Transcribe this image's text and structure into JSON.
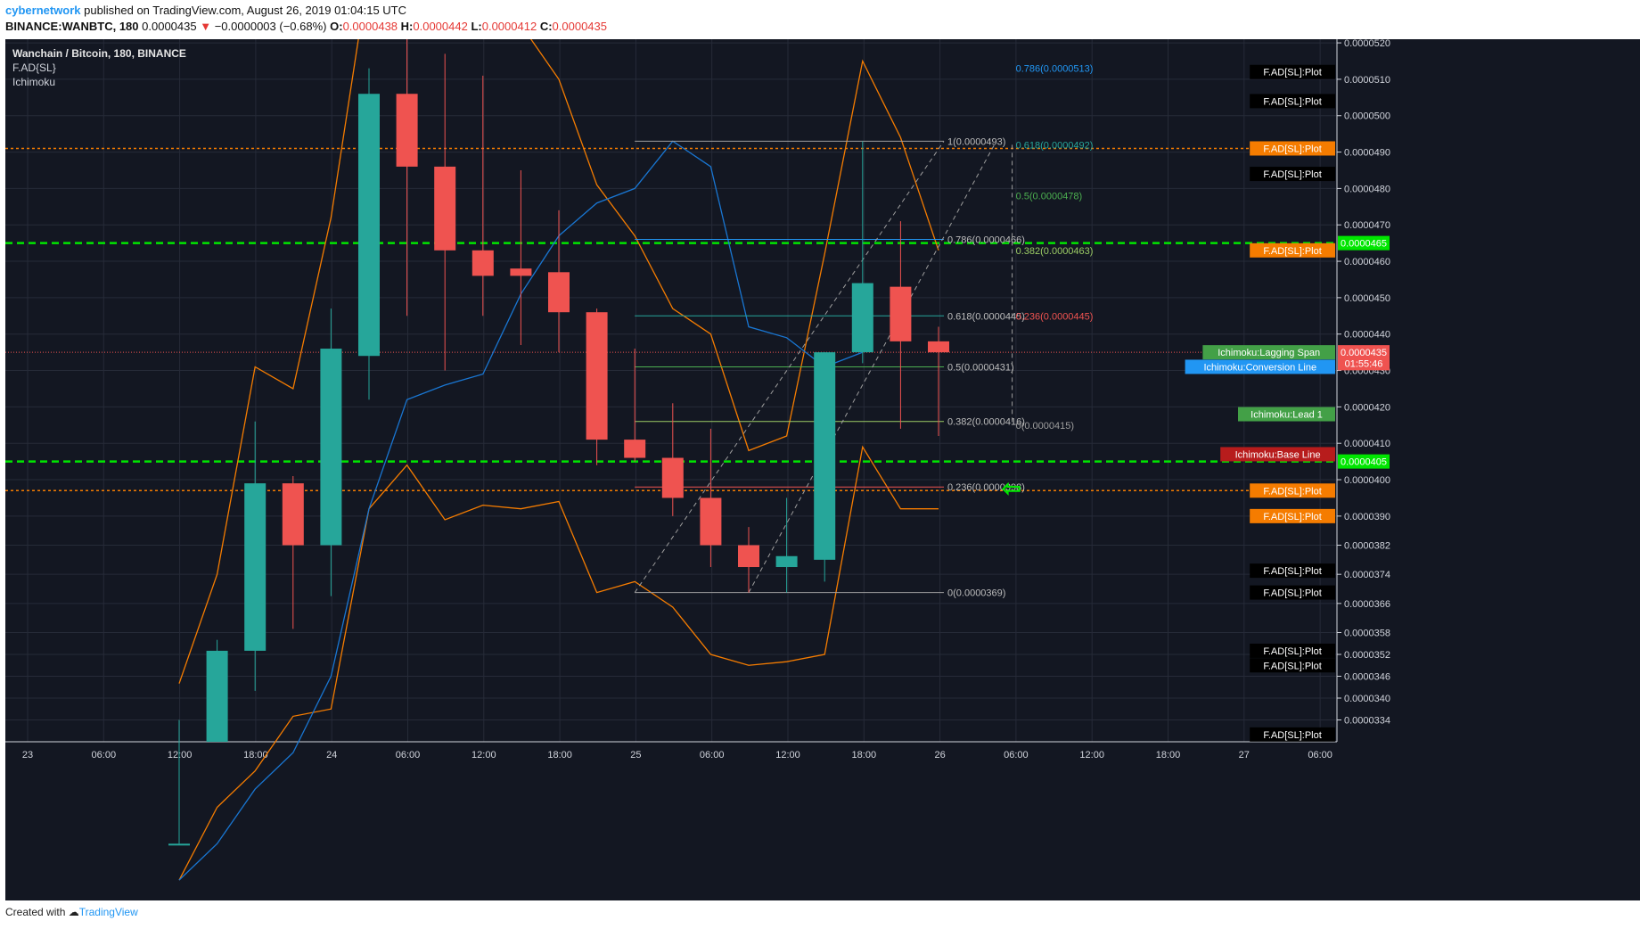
{
  "header": {
    "author": "cybernetwork",
    "published": "published on TradingView.com, August 26, 2019 01:04:15 UTC",
    "symbol_line": "BINANCE:WANBTC, 180",
    "last": "0.0000435",
    "change": "−0.0000003 (−0.68%)",
    "open_label": "O:",
    "open": "0.0000438",
    "high_label": "H:",
    "high": "0.0000442",
    "low_label": "L:",
    "low": "0.0000412",
    "close_label": "C:",
    "close": "0.0000435"
  },
  "legend": {
    "title": "Wanchain / Bitcoin, 180, BINANCE",
    "ind1": "F.AD{SL}",
    "ind2": "Ichimoku"
  },
  "footer": {
    "created": "Created with",
    "brand": "TradingView"
  },
  "colors": {
    "up": "#26a69a",
    "down": "#ef5350",
    "background": "#131722",
    "orange": "#f57c00",
    "green_line": "#00e600",
    "blue": "#2196f3"
  },
  "chart_data": {
    "type": "candlestick",
    "ylim": [
      3.28e-05,
      5.21e-05
    ],
    "y_ticks": [
      "0.0000520",
      "0.0000510",
      "0.0000500",
      "0.0000490",
      "0.0000480",
      "0.0000470",
      "0.0000460",
      "0.0000450",
      "0.0000440",
      "0.0000430",
      "0.0000420",
      "0.0000410",
      "0.0000400",
      "0.0000390",
      "0.0000382",
      "0.0000374",
      "0.0000366",
      "0.0000358",
      "0.0000352",
      "0.0000346",
      "0.0000340",
      "0.0000334"
    ],
    "x_ticks": [
      "23",
      "06:00",
      "12:00",
      "18:00",
      "24",
      "06:00",
      "12:00",
      "18:00",
      "25",
      "06:00",
      "12:00",
      "18:00",
      "26",
      "06:00",
      "12:00",
      "18:00",
      "27",
      "06:00"
    ],
    "candles": [
      {
        "o": 3e-05,
        "h": 3.34e-05,
        "l": 3e-05,
        "c": 3e-05
      },
      {
        "o": 3.28e-05,
        "h": 3.56e-05,
        "l": 3.28e-05,
        "c": 3.53e-05
      },
      {
        "o": 3.53e-05,
        "h": 4.16e-05,
        "l": 3.42e-05,
        "c": 3.99e-05
      },
      {
        "o": 3.99e-05,
        "h": 4.01e-05,
        "l": 3.59e-05,
        "c": 3.82e-05
      },
      {
        "o": 3.82e-05,
        "h": 4.47e-05,
        "l": 3.68e-05,
        "c": 4.36e-05
      },
      {
        "o": 4.34e-05,
        "h": 5.13e-05,
        "l": 4.22e-05,
        "c": 5.06e-05
      },
      {
        "o": 5.06e-05,
        "h": 5.21e-05,
        "l": 4.45e-05,
        "c": 4.86e-05
      },
      {
        "o": 4.86e-05,
        "h": 5.17e-05,
        "l": 4.3e-05,
        "c": 4.63e-05
      },
      {
        "o": 4.63e-05,
        "h": 5.11e-05,
        "l": 4.45e-05,
        "c": 4.56e-05
      },
      {
        "o": 4.58e-05,
        "h": 4.85e-05,
        "l": 4.37e-05,
        "c": 4.56e-05
      },
      {
        "o": 4.57e-05,
        "h": 4.74e-05,
        "l": 4.35e-05,
        "c": 4.46e-05
      },
      {
        "o": 4.46e-05,
        "h": 4.47e-05,
        "l": 4.04e-05,
        "c": 4.11e-05
      },
      {
        "o": 4.11e-05,
        "h": 4.36e-05,
        "l": 4.05e-05,
        "c": 4.06e-05
      },
      {
        "o": 4.06e-05,
        "h": 4.21e-05,
        "l": 3.9e-05,
        "c": 3.95e-05
      },
      {
        "o": 3.95e-05,
        "h": 4.14e-05,
        "l": 3.76e-05,
        "c": 3.82e-05
      },
      {
        "o": 3.82e-05,
        "h": 3.87e-05,
        "l": 3.69e-05,
        "c": 3.76e-05
      },
      {
        "o": 3.76e-05,
        "h": 3.95e-05,
        "l": 3.69e-05,
        "c": 3.79e-05
      },
      {
        "o": 3.78e-05,
        "h": 4.35e-05,
        "l": 3.72e-05,
        "c": 4.35e-05
      },
      {
        "o": 4.35e-05,
        "h": 4.93e-05,
        "l": 4.32e-05,
        "c": 4.54e-05
      },
      {
        "o": 4.53e-05,
        "h": 4.71e-05,
        "l": 4.14e-05,
        "c": 4.38e-05
      },
      {
        "o": 4.38e-05,
        "h": 4.42e-05,
        "l": 4.12e-05,
        "c": 4.35e-05
      }
    ],
    "horizontal_lines": [
      {
        "price": 4.91e-05,
        "style": "dotted",
        "color": "orange"
      },
      {
        "price": 4.65e-05,
        "style": "dashed",
        "color": "green"
      },
      {
        "price": 4.05e-05,
        "style": "dashed",
        "color": "green"
      },
      {
        "price": 3.97e-05,
        "style": "dotted",
        "color": "orange"
      }
    ],
    "fib_retracement": [
      {
        "label": "1(0.0000493)",
        "price": 4.93e-05
      },
      {
        "label": "0.786(0.0000466)",
        "price": 4.66e-05
      },
      {
        "label": "0.618(0.0000445)",
        "price": 4.45e-05
      },
      {
        "label": "0.5(0.0000431)",
        "price": 4.31e-05
      },
      {
        "label": "0.382(0.0000416)",
        "price": 4.16e-05
      },
      {
        "label": "0.236(0.0000398)",
        "price": 3.98e-05
      },
      {
        "label": "0(0.0000369)",
        "price": 3.69e-05
      }
    ],
    "fib_extension": [
      {
        "label": "0.786(0.0000513)",
        "price": 5.13e-05
      },
      {
        "label": "0.618(0.0000492)",
        "price": 4.92e-05
      },
      {
        "label": "0.5(0.0000478)",
        "price": 4.78e-05
      },
      {
        "label": "0.382(0.0000463)",
        "price": 4.63e-05
      },
      {
        "label": "0.236(0.0000445)",
        "price": 4.45e-05
      },
      {
        "label": "0(0.0000415)",
        "price": 4.15e-05
      }
    ],
    "bollinger_upper": [
      3.44e-05,
      3.74e-05,
      4.31e-05,
      4.25e-05,
      4.72e-05,
      5.4e-05,
      5.6e-05,
      5.48e-05,
      5.3e-05,
      5.25e-05,
      5.1e-05,
      4.81e-05,
      4.67e-05,
      4.47e-05,
      4.4e-05,
      4.08e-05,
      4.12e-05,
      4.62e-05,
      5.15e-05,
      4.94e-05,
      4.63e-05
    ],
    "bollinger_lower": [
      2.9e-05,
      3.1e-05,
      3.2e-05,
      3.35e-05,
      3.37e-05,
      3.92e-05,
      4.04e-05,
      3.89e-05,
      3.93e-05,
      3.92e-05,
      3.94e-05,
      3.69e-05,
      3.72e-05,
      3.65e-05,
      3.52e-05,
      3.49e-05,
      3.5e-05,
      3.52e-05,
      4.09e-05,
      3.92e-05,
      3.92e-05
    ],
    "conversion_line": [
      2.9e-05,
      3e-05,
      3.15e-05,
      3.25e-05,
      3.46e-05,
      3.92e-05,
      4.22e-05,
      4.26e-05,
      4.29e-05,
      4.51e-05,
      4.67e-05,
      4.76e-05,
      4.8e-05,
      4.93e-05,
      4.86e-05,
      4.42e-05,
      4.39e-05,
      4.31e-05,
      4.35e-05
    ],
    "price_labels": [
      {
        "text": "0.0000465",
        "price": 4.65e-05,
        "bg": "#00e600"
      },
      {
        "text": "0.0000435",
        "price": 4.35e-05,
        "bg": "#ef5350"
      },
      {
        "text": "01:55:46",
        "price": 4.32e-05,
        "bg": "#ef5350"
      },
      {
        "text": "0.0000405",
        "price": 4.05e-05,
        "bg": "#00e600"
      }
    ],
    "indicator_labels": [
      {
        "text": "F.AD[SL]:Plot",
        "price": 5.12e-05,
        "bg": "#000000"
      },
      {
        "text": "F.AD[SL]:Plot",
        "price": 5.04e-05,
        "bg": "#000000"
      },
      {
        "text": "F.AD[SL]:Plot",
        "price": 4.91e-05,
        "bg": "#f57c00"
      },
      {
        "text": "F.AD[SL]:Plot",
        "price": 4.84e-05,
        "bg": "#000000"
      },
      {
        "text": "F.AD[SL]:Plot",
        "price": 4.63e-05,
        "bg": "#f57c00"
      },
      {
        "text": "Ichimoku:Lagging Span",
        "price": 4.35e-05,
        "bg": "#43a047"
      },
      {
        "text": "Ichimoku:Conversion Line",
        "price": 4.31e-05,
        "bg": "#2196f3"
      },
      {
        "text": "Ichimoku:Lead 1",
        "price": 4.18e-05,
        "bg": "#43a047"
      },
      {
        "text": "Ichimoku:Base Line",
        "price": 4.07e-05,
        "bg": "#b71c1c"
      },
      {
        "text": "F.AD[SL]:Plot",
        "price": 3.97e-05,
        "bg": "#f57c00"
      },
      {
        "text": "F.AD[SL]:Plot",
        "price": 3.9e-05,
        "bg": "#f57c00"
      },
      {
        "text": "F.AD[SL]:Plot",
        "price": 3.75e-05,
        "bg": "#000000"
      },
      {
        "text": "F.AD[SL]:Plot",
        "price": 3.69e-05,
        "bg": "#000000"
      },
      {
        "text": "F.AD[SL]:Plot",
        "price": 3.53e-05,
        "bg": "#000000"
      },
      {
        "text": "F.AD[SL]:Plot",
        "price": 3.49e-05,
        "bg": "#000000"
      },
      {
        "text": "F.AD[SL]:Plot",
        "price": 3.3e-05,
        "bg": "#000000"
      }
    ]
  }
}
